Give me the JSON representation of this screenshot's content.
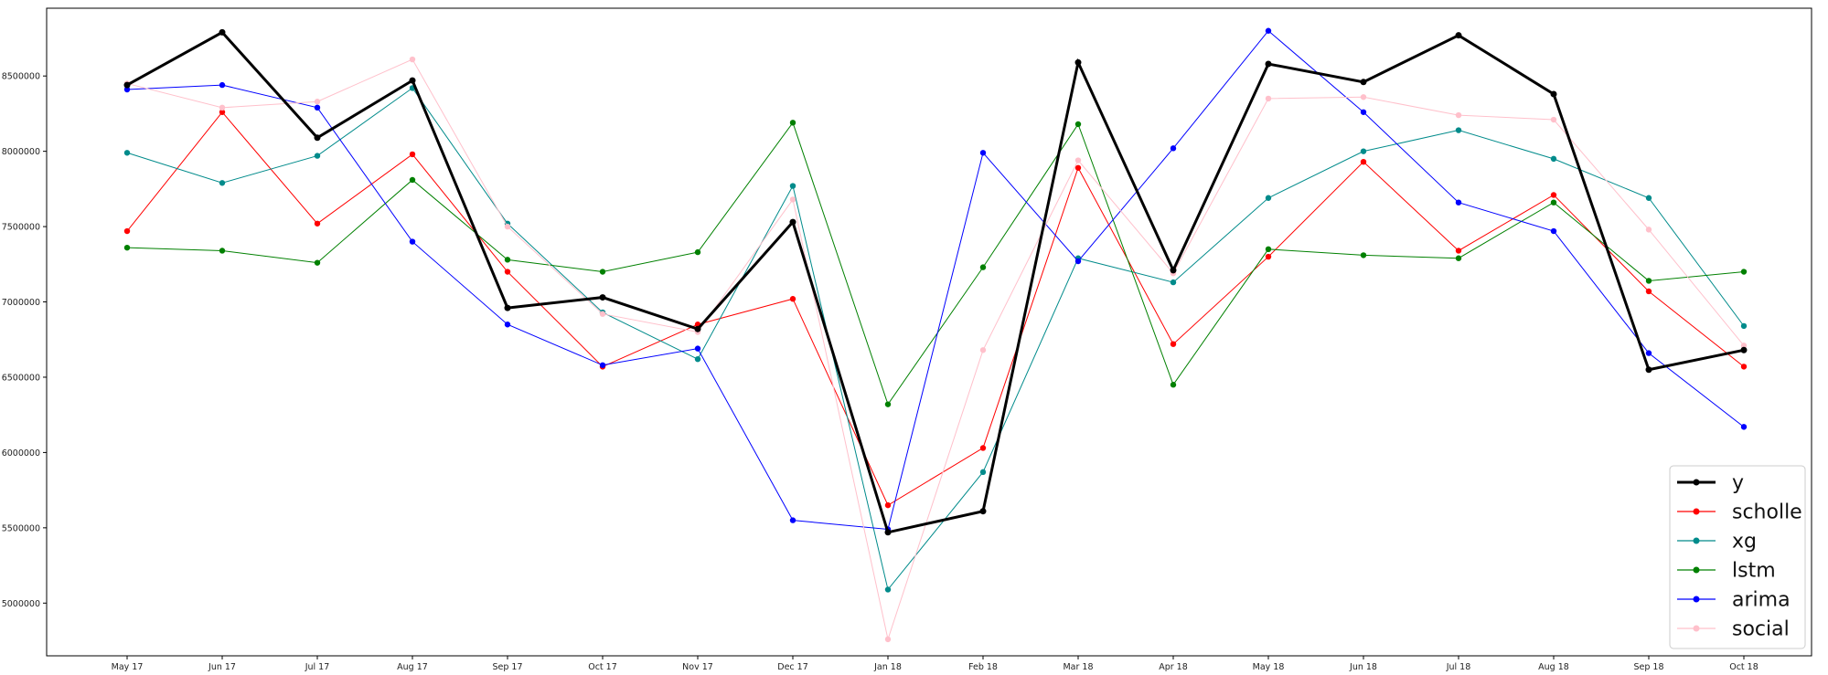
{
  "chart_data": {
    "type": "line",
    "title": "",
    "xlabel": "",
    "ylabel": "",
    "x": [
      "May 17",
      "Jun 17",
      "Jul 17",
      "Aug 17",
      "Sep 17",
      "Oct 17",
      "Nov 17",
      "Dec 17",
      "Jan 18",
      "Feb 18",
      "Mar 18",
      "Apr 18",
      "May 18",
      "Jun 18",
      "Jul 18",
      "Aug 18",
      "Sep 18",
      "Oct 18"
    ],
    "ylim": [
      4650000,
      8950000
    ],
    "yticks": [
      5000000,
      5500000,
      6000000,
      6500000,
      7000000,
      7500000,
      8000000,
      8500000
    ],
    "ytick_labels": [
      "5000000",
      "5500000",
      "6000000",
      "6500000",
      "7000000",
      "7500000",
      "8000000",
      "8500000"
    ],
    "grid": false,
    "legend": "lower-right",
    "series": [
      {
        "name": "y",
        "color": "#000000",
        "linewidth": 3,
        "values": [
          8440000,
          8790000,
          8090000,
          8470000,
          6960000,
          7030000,
          6820000,
          7530000,
          5470000,
          5610000,
          8590000,
          7210000,
          8580000,
          8460000,
          8770000,
          8380000,
          6550000,
          6680000
        ]
      },
      {
        "name": "scholle",
        "color": "#ff0000",
        "linewidth": 1,
        "values": [
          7470000,
          8260000,
          7520000,
          7980000,
          7200000,
          6570000,
          6850000,
          7020000,
          5650000,
          6030000,
          7890000,
          6720000,
          7300000,
          7930000,
          7340000,
          7710000,
          7070000,
          6570000
        ]
      },
      {
        "name": "xg",
        "color": "#008b8b",
        "linewidth": 1,
        "values": [
          7990000,
          7790000,
          7970000,
          8420000,
          7520000,
          6930000,
          6620000,
          7770000,
          5090000,
          5870000,
          7290000,
          7130000,
          7690000,
          8000000,
          8140000,
          7950000,
          7690000,
          6840000
        ]
      },
      {
        "name": "lstm",
        "color": "#008000",
        "linewidth": 1,
        "values": [
          7360000,
          7340000,
          7260000,
          7810000,
          7280000,
          7200000,
          7330000,
          8190000,
          6320000,
          7230000,
          8180000,
          6450000,
          7350000,
          7310000,
          7290000,
          7660000,
          7140000,
          7200000
        ]
      },
      {
        "name": "arima",
        "color": "#0000ff",
        "linewidth": 1,
        "values": [
          8410000,
          8440000,
          8290000,
          7400000,
          6850000,
          6580000,
          6690000,
          5550000,
          5490000,
          7990000,
          7270000,
          8020000,
          8800000,
          8260000,
          7660000,
          7470000,
          6660000,
          6170000
        ]
      },
      {
        "name": "social",
        "color": "#ffc0cb",
        "linewidth": 1,
        "values": [
          8450000,
          8290000,
          8330000,
          8610000,
          7500000,
          6920000,
          6800000,
          7680000,
          4760000,
          6680000,
          7940000,
          7190000,
          8350000,
          8360000,
          8240000,
          8210000,
          7480000,
          6710000
        ]
      }
    ]
  }
}
